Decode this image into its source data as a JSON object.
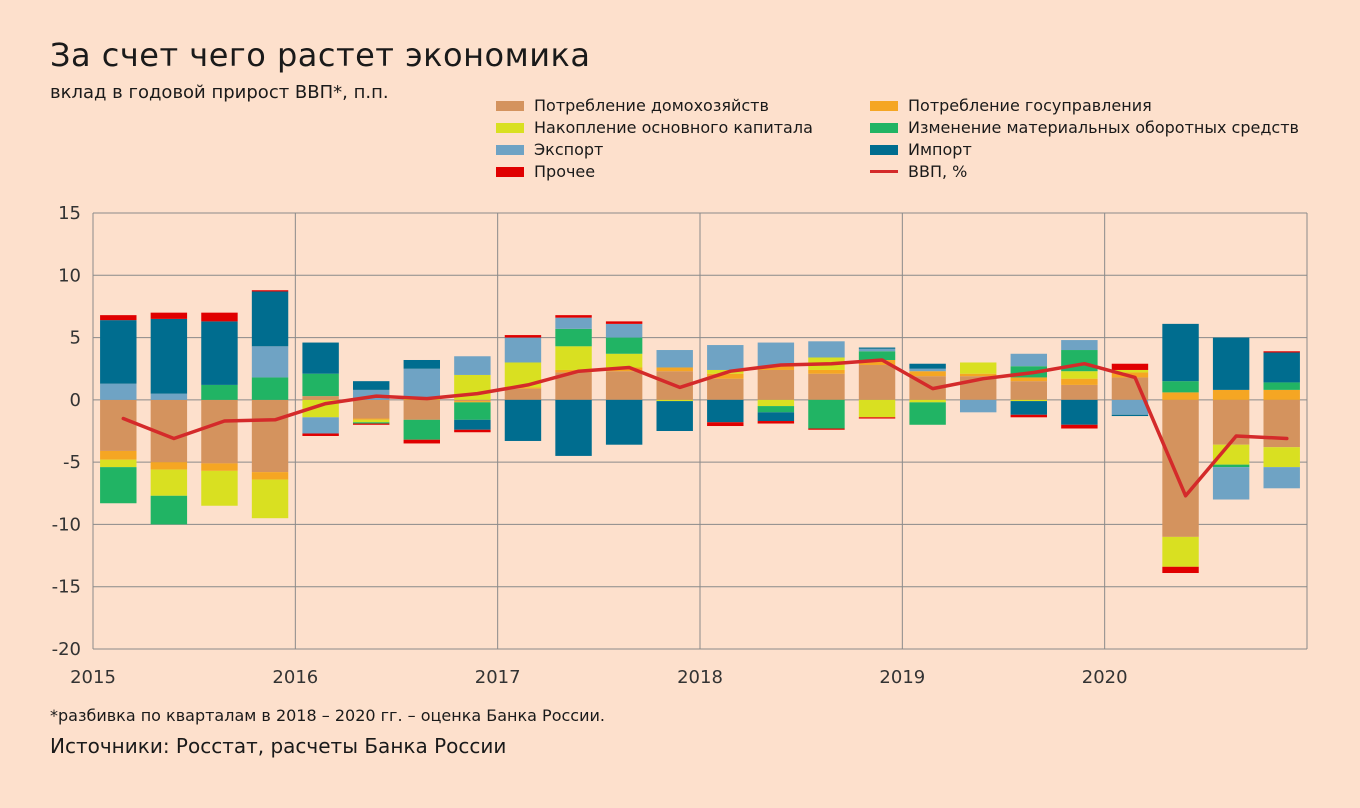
{
  "title": "За счет чего растет экономика",
  "subtitle": "вклад в годовой прирост ВВП*, п.п.",
  "footnote": "*разбивка по кварталам в 2018 – 2020 гг. – оценка Банка России.",
  "source": "Источники: Росстат, расчеты Банка России",
  "colors": {
    "background": "#fde0cc",
    "grid": "#8a8a8a",
    "household": "#d4935e",
    "government": "#f5a623",
    "fixed_capital": "#d9e021",
    "inventories": "#21b464",
    "export": "#6fa3c4",
    "import": "#006d8f",
    "other": "#e00000",
    "gdp": "#d42a2a"
  },
  "legend": [
    {
      "key": "household",
      "label": "Потребление домохозяйств",
      "type": "box"
    },
    {
      "key": "government",
      "label": "Потребление госуправления",
      "type": "box"
    },
    {
      "key": "fixed_capital",
      "label": "Накопление основного капитала",
      "type": "box"
    },
    {
      "key": "inventories",
      "label": "Изменение материальных оборотных средств",
      "type": "box"
    },
    {
      "key": "export",
      "label": "Экспорт",
      "type": "box"
    },
    {
      "key": "import",
      "label": "Импорт",
      "type": "box"
    },
    {
      "key": "other",
      "label": "Прочее",
      "type": "box"
    },
    {
      "key": "gdp",
      "label": "ВВП, %",
      "type": "line"
    }
  ],
  "chart_data": {
    "type": "bar",
    "stacked": true,
    "ylim": [
      -20,
      15
    ],
    "y_ticks": [
      15,
      10,
      5,
      0,
      -5,
      -10,
      -15,
      -20
    ],
    "x_ticks": [
      "2015",
      "2016",
      "2017",
      "2018",
      "2019",
      "2020"
    ],
    "categories": [
      "2015 Q1",
      "2015 Q2",
      "2015 Q3",
      "2015 Q4",
      "2016 Q1",
      "2016 Q2",
      "2016 Q3",
      "2016 Q4",
      "2017 Q1",
      "2017 Q2",
      "2017 Q3",
      "2017 Q4",
      "2018 Q1",
      "2018 Q2",
      "2018 Q3",
      "2018 Q4",
      "2019 Q1",
      "2019 Q2",
      "2019 Q3",
      "2019 Q4",
      "2020 Q1",
      "2020 Q2",
      "2020 Q3",
      "2020 Q4"
    ],
    "series": [
      {
        "name": "Потребление домохозяйств",
        "key": "household",
        "values": [
          -4.1,
          -5.0,
          -5.1,
          -5.8,
          0.3,
          -1.5,
          -1.6,
          -0.1,
          0.9,
          2.2,
          2.3,
          2.3,
          1.7,
          2.4,
          2.1,
          2.8,
          1.9,
          1.9,
          1.5,
          1.2,
          1.8,
          -11.0,
          -3.6,
          -3.8
        ]
      },
      {
        "name": "Потребление госуправления",
        "key": "government",
        "values": [
          -0.7,
          -0.6,
          -0.6,
          -0.6,
          0.0,
          -0.1,
          0.0,
          -0.1,
          0.1,
          0.2,
          0.3,
          0.3,
          0.4,
          0.3,
          0.3,
          0.4,
          0.4,
          0.2,
          0.3,
          0.5,
          0.4,
          0.6,
          0.8,
          0.8
        ]
      },
      {
        "name": "Накопление основного капитала",
        "key": "fixed_capital",
        "values": [
          -0.6,
          -2.1,
          -2.8,
          -3.1,
          -1.4,
          -0.2,
          0.2,
          2.0,
          2.0,
          1.9,
          1.1,
          -0.1,
          0.3,
          -0.5,
          1.0,
          -1.4,
          -0.2,
          0.9,
          -0.1,
          0.6,
          0.2,
          -2.4,
          -1.6,
          -1.6
        ]
      },
      {
        "name": "Изменение материальных оборотных средств",
        "key": "inventories",
        "values": [
          -2.9,
          -2.3,
          1.2,
          1.8,
          1.8,
          -0.1,
          -1.6,
          -1.4,
          0.0,
          1.4,
          1.3,
          0.0,
          0.0,
          -0.5,
          -2.3,
          0.7,
          -1.8,
          0.0,
          0.9,
          1.7,
          0.0,
          0.9,
          -0.2,
          0.6
        ]
      },
      {
        "name": "Экспорт",
        "key": "export",
        "values": [
          1.3,
          0.5,
          0.0,
          2.5,
          -1.3,
          0.8,
          2.3,
          1.5,
          2.0,
          0.9,
          1.1,
          1.4,
          2.0,
          1.9,
          1.3,
          0.2,
          0.2,
          -1.0,
          1.0,
          0.8,
          -1.2,
          0.0,
          -2.6,
          -1.7
        ]
      },
      {
        "name": "Импорт",
        "key": "import",
        "values": [
          5.1,
          6.0,
          5.1,
          4.4,
          2.5,
          0.7,
          0.7,
          -0.8,
          -3.3,
          -4.5,
          -3.6,
          -2.4,
          -1.8,
          -0.7,
          0.0,
          0.1,
          0.4,
          0.0,
          -1.1,
          -2.0,
          -0.1,
          4.6,
          4.2,
          2.4
        ]
      },
      {
        "name": "Прочее",
        "key": "other",
        "values": [
          0.4,
          0.5,
          0.7,
          0.1,
          -0.2,
          -0.1,
          -0.3,
          -0.2,
          0.2,
          0.2,
          0.2,
          0.0,
          -0.3,
          -0.2,
          -0.1,
          -0.1,
          0.0,
          0.0,
          -0.2,
          -0.3,
          0.5,
          -0.5,
          0.0,
          0.1
        ]
      }
    ],
    "line": {
      "name": "ВВП, %",
      "key": "gdp",
      "x": [
        0.1,
        1.1,
        2.1,
        3.1,
        4.1,
        5.1,
        6.1,
        7.1,
        8.1,
        9.1,
        10.1,
        11.1,
        12.1,
        13.1,
        14.1,
        15.1,
        16.1,
        17.1,
        18.1,
        19.1,
        20.1,
        21.1,
        22.1,
        23.1
      ],
      "values": [
        -1.5,
        -3.1,
        -1.7,
        -1.6,
        -0.3,
        0.3,
        0.1,
        0.5,
        1.2,
        2.3,
        2.6,
        1.0,
        2.3,
        2.8,
        2.9,
        3.2,
        0.9,
        1.7,
        2.2,
        2.9,
        1.8,
        -7.7,
        -2.9,
        -3.1
      ]
    }
  }
}
